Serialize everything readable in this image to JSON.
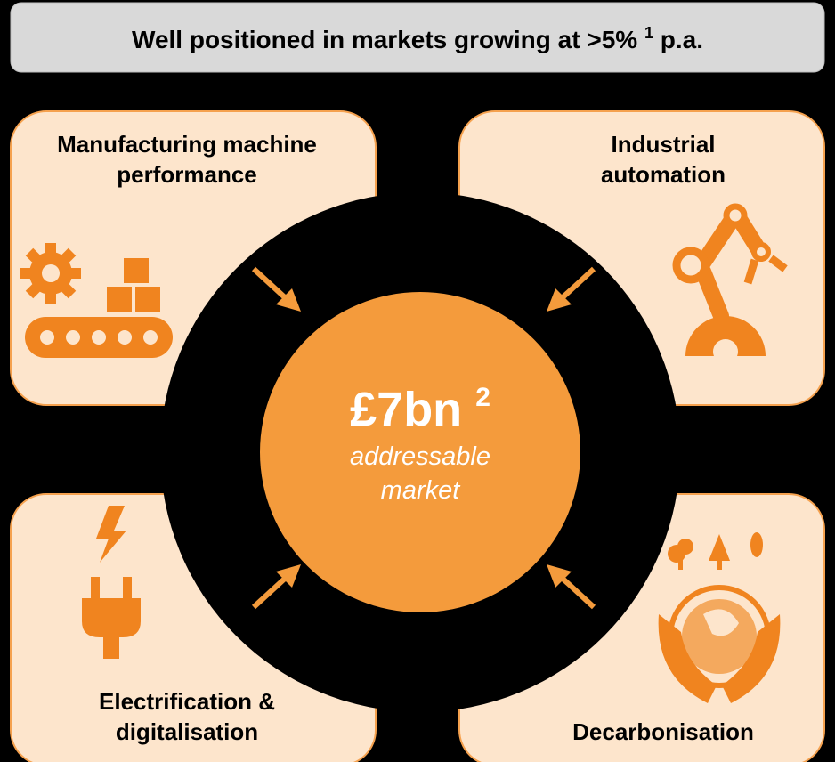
{
  "header": {
    "title": "Well positioned in markets growing at >5%",
    "footnote": "1",
    "suffix": "p.a."
  },
  "center": {
    "value": "£7bn",
    "footnote": "2",
    "lines": [
      "addressable",
      "market"
    ]
  },
  "quadrants": [
    {
      "lines": [
        "Manufacturing machine",
        "performance"
      ]
    },
    {
      "lines": [
        "Industrial",
        "automation"
      ]
    },
    {
      "lines": [
        "Electrification &",
        "digitalisation"
      ]
    },
    {
      "lines": [
        "Decarbonisation"
      ]
    }
  ]
}
